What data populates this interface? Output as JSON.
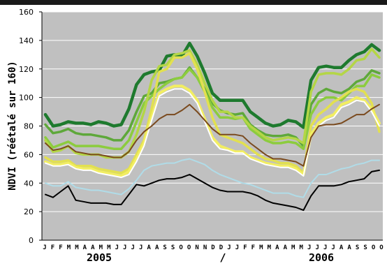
{
  "chart_data": {
    "type": "line",
    "ylabel": "NDVI (réétalé sur 160)",
    "ylim": [
      0,
      160
    ],
    "yticks": [
      0,
      20,
      40,
      60,
      80,
      100,
      120,
      140,
      160
    ],
    "grid": true,
    "x_month_labels": [
      "J",
      "F",
      "F",
      "M",
      "M",
      "A",
      "A",
      "M",
      "M",
      "J",
      "J",
      "J",
      "J",
      "A",
      "A",
      "S",
      "S",
      "O",
      "O",
      "N",
      "N",
      "D",
      "D",
      "J",
      "J",
      "F",
      "F",
      "M",
      "M",
      "A",
      "A",
      "M",
      "M",
      "J",
      "J",
      "J",
      "J",
      "A",
      "A",
      "S",
      "S",
      "O",
      "O"
    ],
    "year_labels": [
      "2005",
      "/",
      "2006"
    ],
    "colors": {
      "plot_bg": "#c0c0c0",
      "grid": "#ffffff"
    },
    "series": [
      {
        "color": "#1e7a2e",
        "width": 4.5,
        "values": [
          88,
          80,
          81,
          83,
          82,
          82,
          81,
          83,
          82,
          80,
          81,
          92,
          109,
          116,
          118,
          119,
          129,
          130,
          129,
          138,
          129,
          117,
          103,
          98,
          98,
          98,
          98,
          90,
          86,
          82,
          80,
          81,
          84,
          83,
          79,
          112,
          121,
          122,
          121,
          121,
          126,
          130,
          132,
          137,
          133
        ]
      },
      {
        "color": "#5ea83a",
        "width": 3.5,
        "values": [
          81,
          75,
          76,
          78,
          75,
          74,
          74,
          73,
          72,
          70,
          70,
          77,
          90,
          101,
          103,
          110,
          111,
          113,
          114,
          121,
          114,
          106,
          96,
          91,
          89,
          88,
          89,
          81,
          77,
          74,
          73,
          73,
          74,
          72,
          66,
          95,
          103,
          106,
          104,
          103,
          106,
          111,
          113,
          119,
          117
        ]
      },
      {
        "color": "#8ccc3e",
        "width": 3.5,
        "values": [
          72,
          65,
          67,
          69,
          66,
          66,
          66,
          66,
          65,
          64,
          64,
          70,
          83,
          96,
          101,
          106,
          110,
          113,
          114,
          120,
          114,
          104,
          93,
          86,
          86,
          85,
          86,
          78,
          74,
          70,
          68,
          68,
          69,
          68,
          64,
          88,
          97,
          100,
          100,
          98,
          103,
          108,
          108,
          116,
          114
        ]
      },
      {
        "color": "#b4d646",
        "width": 3.5,
        "values": [
          70,
          62,
          63,
          66,
          61,
          60,
          60,
          60,
          58,
          58,
          58,
          62,
          74,
          90,
          112,
          122,
          123,
          130,
          131,
          133,
          123,
          110,
          98,
          90,
          90,
          86,
          86,
          80,
          76,
          72,
          70,
          71,
          72,
          71,
          68,
          104,
          116,
          117,
          117,
          116,
          120,
          126,
          127,
          134,
          128
        ]
      },
      {
        "color": "#e2e050",
        "width": 3.5,
        "values": [
          58,
          55,
          55,
          56,
          52,
          52,
          52,
          50,
          49,
          48,
          47,
          50,
          60,
          70,
          92,
          118,
          120,
          128,
          128,
          131,
          120,
          104,
          86,
          74,
          72,
          70,
          68,
          64,
          60,
          57,
          56,
          54,
          54,
          52,
          47,
          80,
          88,
          92,
          97,
          100,
          104,
          106,
          104,
          96,
          76
        ]
      },
      {
        "color": "#f2ee62",
        "width": 4,
        "values": [
          55,
          53,
          53,
          54,
          51,
          50,
          50,
          48,
          47,
          46,
          45,
          48,
          57,
          68,
          86,
          103,
          106,
          108,
          108,
          105,
          98,
          85,
          72,
          66,
          64,
          62,
          62,
          58,
          56,
          54,
          53,
          52,
          52,
          50,
          46,
          74,
          82,
          86,
          88,
          95,
          97,
          100,
          98,
          92,
          82
        ]
      },
      {
        "color": "#ffffff",
        "width": 2,
        "values": [
          54,
          52,
          52,
          53,
          50,
          49,
          49,
          47,
          46,
          45,
          44,
          46,
          55,
          66,
          84,
          101,
          104,
          106,
          106,
          103,
          96,
          83,
          70,
          64,
          63,
          61,
          61,
          57,
          55,
          53,
          52,
          51,
          51,
          49,
          45,
          72,
          80,
          84,
          86,
          93,
          95,
          98,
          97,
          90,
          80
        ]
      },
      {
        "color": "#7a4a1e",
        "width": 2,
        "values": [
          68,
          63,
          64,
          66,
          62,
          61,
          60,
          60,
          59,
          58,
          58,
          62,
          70,
          76,
          80,
          85,
          88,
          88,
          91,
          95,
          90,
          84,
          78,
          74,
          74,
          74,
          73,
          68,
          64,
          60,
          57,
          57,
          56,
          55,
          52,
          72,
          80,
          81,
          81,
          82,
          85,
          88,
          88,
          92,
          95
        ]
      },
      {
        "color": "#b0dce8",
        "width": 2,
        "values": [
          40,
          38,
          38,
          41,
          37,
          36,
          35,
          35,
          34,
          33,
          32,
          36,
          42,
          49,
          52,
          53,
          54,
          54,
          56,
          57,
          55,
          53,
          49,
          46,
          44,
          42,
          40,
          39,
          37,
          35,
          33,
          33,
          33,
          31,
          30,
          40,
          46,
          46,
          48,
          50,
          51,
          53,
          54,
          56,
          56
        ]
      },
      {
        "color": "#000000",
        "width": 2,
        "values": [
          32,
          30,
          34,
          38,
          28,
          27,
          26,
          26,
          26,
          25,
          25,
          32,
          39,
          38,
          40,
          42,
          43,
          43,
          44,
          46,
          43,
          40,
          37,
          35,
          34,
          34,
          34,
          33,
          31,
          28,
          26,
          25,
          24,
          23,
          21,
          31,
          38,
          38,
          38,
          39,
          41,
          42,
          43,
          48,
          49
        ]
      }
    ]
  }
}
